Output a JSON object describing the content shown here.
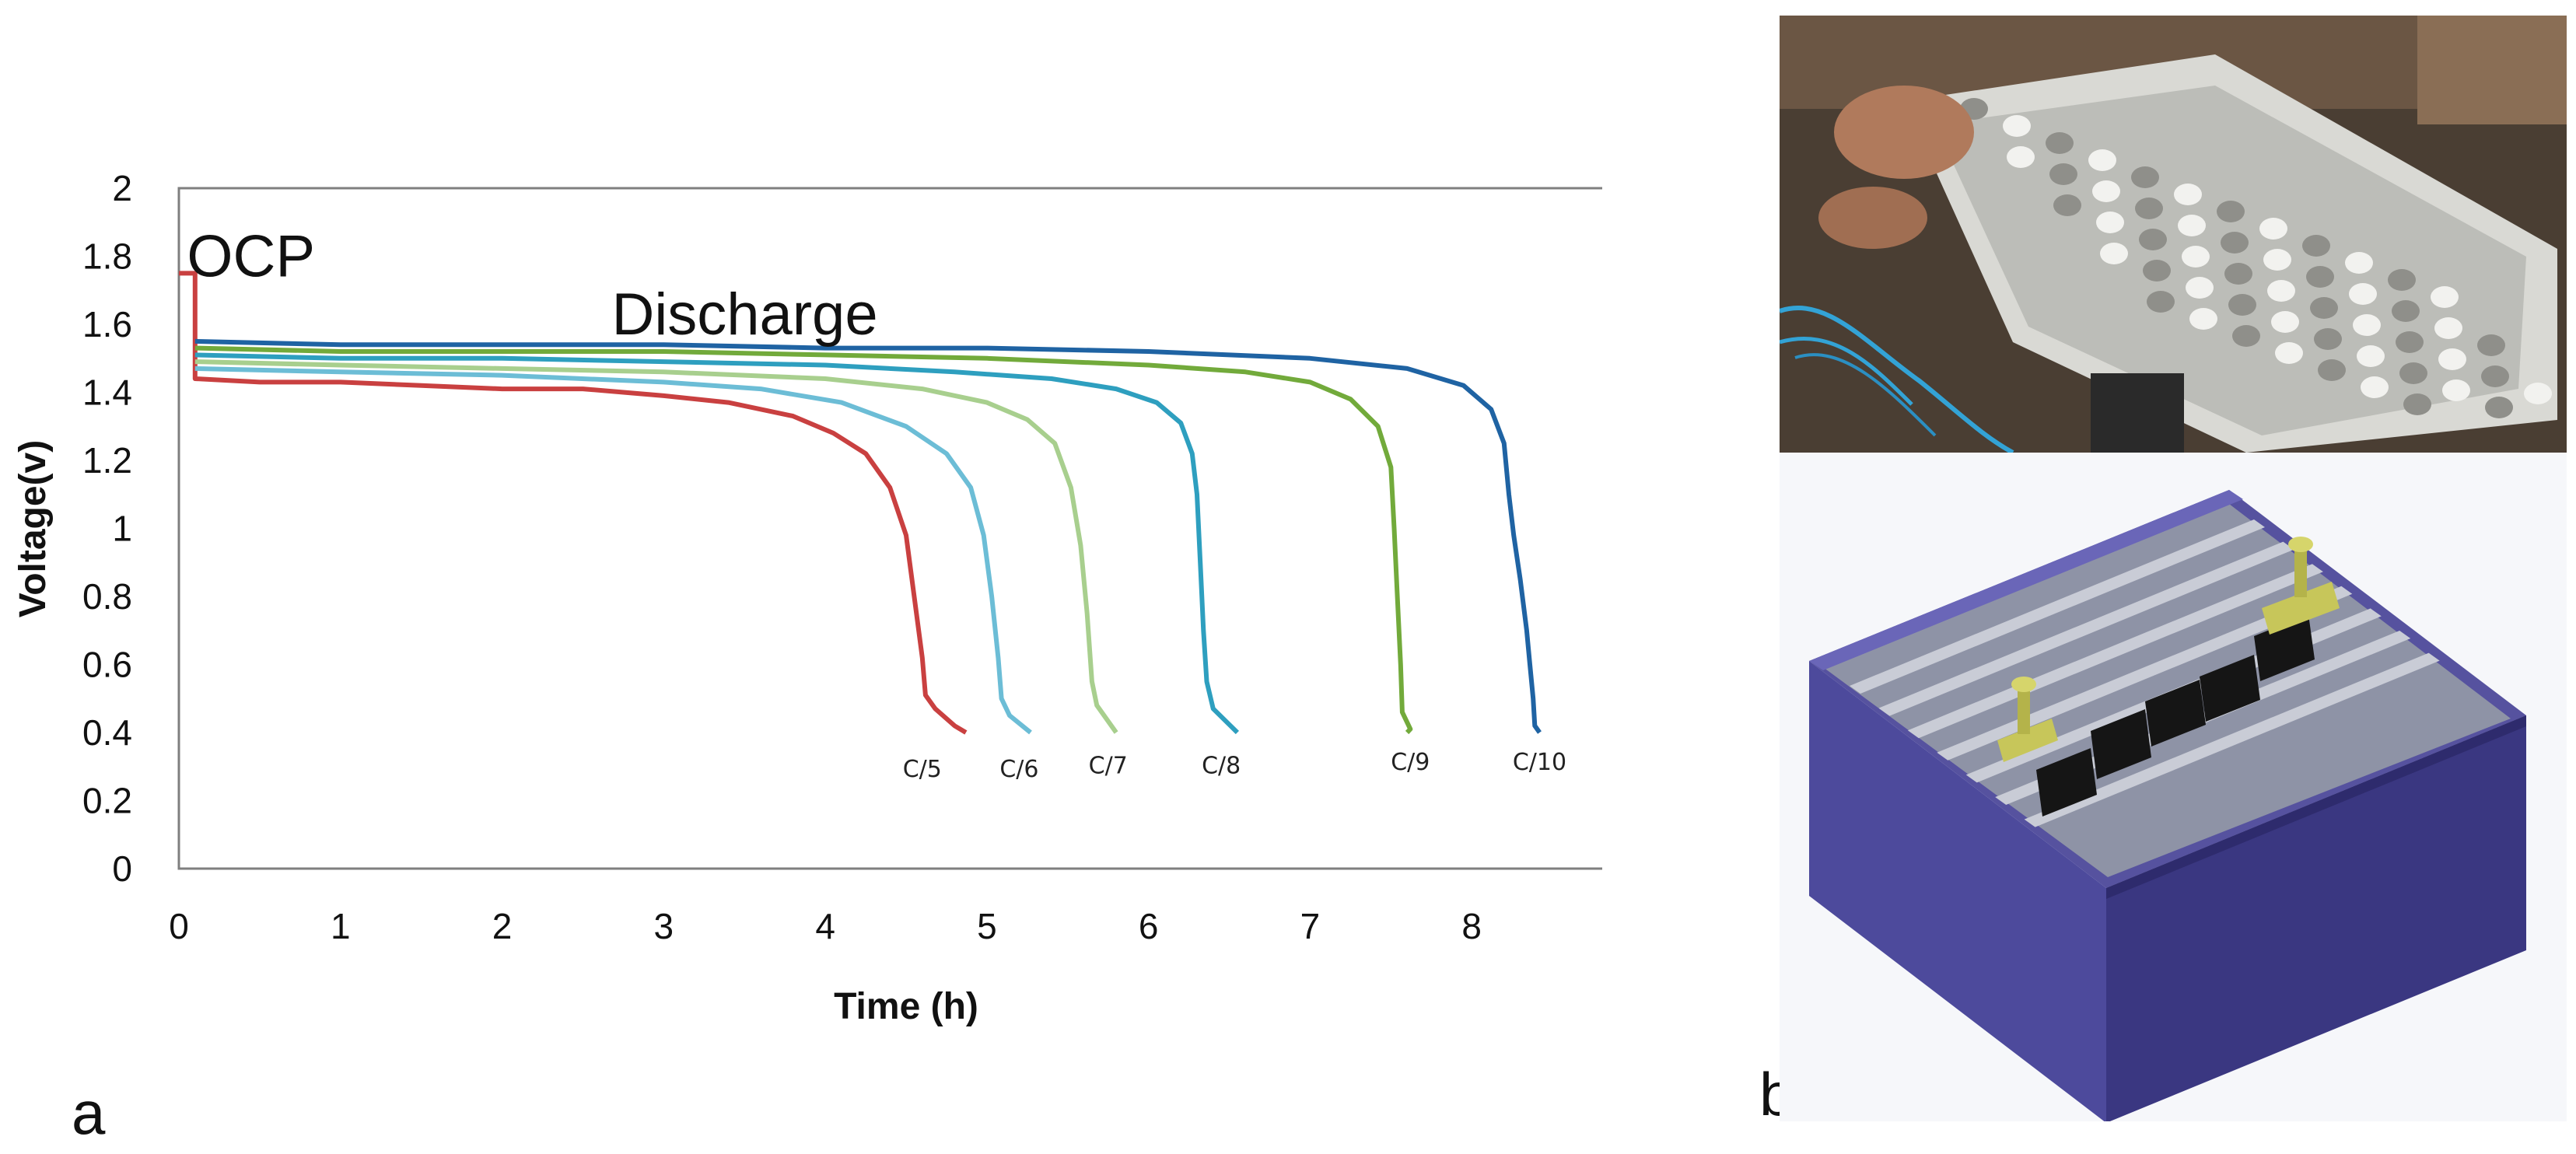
{
  "panel_labels": {
    "a": "a",
    "b": "b"
  },
  "chart_data": {
    "type": "line",
    "title": "",
    "xlabel": "Time (h)",
    "ylabel": "Voltage(v)",
    "xlim": [
      0,
      9
    ],
    "ylim": [
      0,
      2
    ],
    "xticks": [
      0,
      1,
      2,
      3,
      4,
      5,
      6,
      7,
      8,
      9
    ],
    "yticks": [
      0,
      0.2,
      0.4,
      0.6,
      0.8,
      1,
      1.2,
      1.4,
      1.6,
      1.8,
      2
    ],
    "grid": false,
    "annotations": [
      {
        "text": "OCP",
        "x": 0.05,
        "y": 1.8
      },
      {
        "text": "Discharge",
        "x": 3.4,
        "y": 1.63
      }
    ],
    "series": [
      {
        "name": "C/5",
        "color": "#c94040",
        "points": [
          [
            0,
            1.75
          ],
          [
            0.1,
            1.75
          ],
          [
            0.1,
            1.44
          ],
          [
            0.5,
            1.43
          ],
          [
            1,
            1.43
          ],
          [
            1.5,
            1.42
          ],
          [
            2,
            1.41
          ],
          [
            2.5,
            1.41
          ],
          [
            3,
            1.39
          ],
          [
            3.4,
            1.37
          ],
          [
            3.8,
            1.33
          ],
          [
            4.05,
            1.28
          ],
          [
            4.25,
            1.22
          ],
          [
            4.4,
            1.12
          ],
          [
            4.5,
            0.98
          ],
          [
            4.55,
            0.8
          ],
          [
            4.6,
            0.62
          ],
          [
            4.62,
            0.51
          ],
          [
            4.68,
            0.47
          ],
          [
            4.8,
            0.42
          ],
          [
            4.87,
            0.4
          ]
        ]
      },
      {
        "name": "C/6",
        "color": "#6cbdd6",
        "points": [
          [
            0.1,
            1.47
          ],
          [
            1,
            1.46
          ],
          [
            2,
            1.45
          ],
          [
            3,
            1.43
          ],
          [
            3.6,
            1.41
          ],
          [
            4.1,
            1.37
          ],
          [
            4.5,
            1.3
          ],
          [
            4.75,
            1.22
          ],
          [
            4.9,
            1.12
          ],
          [
            4.98,
            0.98
          ],
          [
            5.03,
            0.8
          ],
          [
            5.07,
            0.62
          ],
          [
            5.09,
            0.5
          ],
          [
            5.14,
            0.45
          ],
          [
            5.27,
            0.4
          ]
        ]
      },
      {
        "name": "C/7",
        "color": "#a8cf8e",
        "points": [
          [
            0.1,
            1.49
          ],
          [
            1,
            1.48
          ],
          [
            2,
            1.47
          ],
          [
            3,
            1.46
          ],
          [
            4,
            1.44
          ],
          [
            4.6,
            1.41
          ],
          [
            5,
            1.37
          ],
          [
            5.25,
            1.32
          ],
          [
            5.42,
            1.25
          ],
          [
            5.52,
            1.12
          ],
          [
            5.58,
            0.95
          ],
          [
            5.62,
            0.75
          ],
          [
            5.65,
            0.55
          ],
          [
            5.68,
            0.48
          ],
          [
            5.8,
            0.4
          ]
        ]
      },
      {
        "name": "C/8",
        "color": "#2e9fbf",
        "points": [
          [
            0.1,
            1.51
          ],
          [
            1,
            1.5
          ],
          [
            2,
            1.5
          ],
          [
            3,
            1.49
          ],
          [
            4,
            1.48
          ],
          [
            4.8,
            1.46
          ],
          [
            5.4,
            1.44
          ],
          [
            5.8,
            1.41
          ],
          [
            6.05,
            1.37
          ],
          [
            6.2,
            1.31
          ],
          [
            6.27,
            1.22
          ],
          [
            6.3,
            1.1
          ],
          [
            6.32,
            0.9
          ],
          [
            6.34,
            0.7
          ],
          [
            6.36,
            0.55
          ],
          [
            6.4,
            0.47
          ],
          [
            6.55,
            0.4
          ]
        ]
      },
      {
        "name": "C/9",
        "color": "#72aa3b",
        "points": [
          [
            0.1,
            1.53
          ],
          [
            1,
            1.52
          ],
          [
            2,
            1.52
          ],
          [
            3,
            1.52
          ],
          [
            4,
            1.51
          ],
          [
            5,
            1.5
          ],
          [
            6,
            1.48
          ],
          [
            6.6,
            1.46
          ],
          [
            7,
            1.43
          ],
          [
            7.25,
            1.38
          ],
          [
            7.42,
            1.3
          ],
          [
            7.5,
            1.18
          ],
          [
            7.52,
            1.0
          ],
          [
            7.54,
            0.8
          ],
          [
            7.56,
            0.6
          ],
          [
            7.57,
            0.46
          ],
          [
            7.62,
            0.41
          ],
          [
            7.6,
            0.4
          ]
        ]
      },
      {
        "name": "C/10",
        "color": "#1f63a3",
        "points": [
          [
            0.1,
            1.55
          ],
          [
            1,
            1.54
          ],
          [
            2,
            1.54
          ],
          [
            3,
            1.54
          ],
          [
            4,
            1.53
          ],
          [
            5,
            1.53
          ],
          [
            6,
            1.52
          ],
          [
            7,
            1.5
          ],
          [
            7.6,
            1.47
          ],
          [
            7.95,
            1.42
          ],
          [
            8.12,
            1.35
          ],
          [
            8.2,
            1.25
          ],
          [
            8.23,
            1.1
          ],
          [
            8.26,
            0.98
          ],
          [
            8.3,
            0.85
          ],
          [
            8.34,
            0.7
          ],
          [
            8.36,
            0.6
          ],
          [
            8.38,
            0.5
          ],
          [
            8.39,
            0.42
          ],
          [
            8.42,
            0.4
          ]
        ]
      }
    ],
    "series_labels": [
      {
        "text": "C/5",
        "x": 4.6,
        "y": 0.27
      },
      {
        "text": "C/6",
        "x": 5.2,
        "y": 0.27
      },
      {
        "text": "C/7",
        "x": 5.75,
        "y": 0.28
      },
      {
        "text": "C/8",
        "x": 6.45,
        "y": 0.28
      },
      {
        "text": "C/9",
        "x": 7.62,
        "y": 0.29
      },
      {
        "text": "C/10",
        "x": 8.42,
        "y": 0.29
      }
    ]
  },
  "colors": {
    "photo_box": "#d9d9d4",
    "photo_bg": "#4a3e33",
    "render_box": "#4d4a9c",
    "render_box_dark": "#3a3781",
    "render_plate": "#9da3b0",
    "render_electrode": "#151515",
    "render_terminal": "#c7c65a"
  }
}
